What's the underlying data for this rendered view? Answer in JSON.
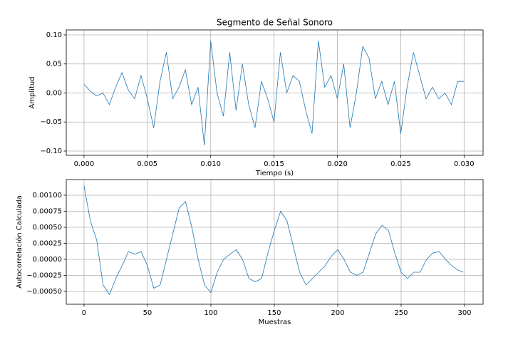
{
  "chart_data": [
    {
      "type": "line",
      "title": "Segmento de Señal Sonoro",
      "x_label": "Tiempo (s)",
      "y_label": "Amplitud",
      "x": [
        0,
        0.0005,
        0.001,
        0.0015,
        0.002,
        0.0025,
        0.003,
        0.0035,
        0.004,
        0.0045,
        0.005,
        0.0055,
        0.006,
        0.0065,
        0.007,
        0.0075,
        0.008,
        0.0085,
        0.009,
        0.0095,
        0.01,
        0.0105,
        0.011,
        0.0115,
        0.012,
        0.0125,
        0.013,
        0.0135,
        0.014,
        0.0145,
        0.015,
        0.0155,
        0.016,
        0.0165,
        0.017,
        0.0175,
        0.018,
        0.0185,
        0.019,
        0.0195,
        0.02,
        0.0205,
        0.021,
        0.0215,
        0.022,
        0.0225,
        0.023,
        0.0235,
        0.024,
        0.0245,
        0.025,
        0.0255,
        0.026,
        0.0265,
        0.027,
        0.0275,
        0.028,
        0.0285,
        0.029,
        0.0295,
        0.03
      ],
      "series": [
        {
          "color": "#1f77b4",
          "values": [
            0.015,
            0.003,
            -0.005,
            0.0,
            -0.02,
            0.01,
            0.035,
            0.005,
            -0.01,
            0.03,
            -0.01,
            -0.06,
            0.02,
            0.07,
            -0.01,
            0.01,
            0.04,
            -0.02,
            0.01,
            -0.09,
            0.09,
            0.0,
            -0.04,
            0.07,
            -0.03,
            0.05,
            -0.02,
            -0.06,
            0.02,
            -0.01,
            -0.05,
            0.07,
            0.0,
            0.03,
            0.02,
            -0.03,
            -0.07,
            0.09,
            0.01,
            0.03,
            -0.01,
            0.05,
            -0.06,
            0.0,
            0.08,
            0.06,
            -0.01,
            0.02,
            -0.02,
            0.02,
            -0.07,
            0.01,
            0.07,
            0.03,
            -0.01,
            0.01,
            -0.01,
            0.0,
            -0.02,
            0.02,
            0.02
          ]
        }
      ],
      "xlim": [
        -0.0014,
        0.0315
      ],
      "ylim": [
        -0.1074,
        0.1086
      ],
      "xticks": [
        {
          "value": 0,
          "label": "0.000"
        },
        {
          "value": 0.005,
          "label": "0.005"
        },
        {
          "value": 0.01,
          "label": "0.010"
        },
        {
          "value": 0.015,
          "label": "0.015"
        },
        {
          "value": 0.02,
          "label": "0.020"
        },
        {
          "value": 0.025,
          "label": "0.025"
        },
        {
          "value": 0.03,
          "label": "0.030"
        }
      ],
      "yticks": [
        {
          "value": -0.1,
          "label": "−0.10"
        },
        {
          "value": -0.05,
          "label": "−0.05"
        },
        {
          "value": 0,
          "label": "0.00"
        },
        {
          "value": 0.05,
          "label": "0.05"
        },
        {
          "value": 0.1,
          "label": "0.10"
        }
      ],
      "grid": true
    },
    {
      "type": "line",
      "x_label": "Muestras",
      "y_label": "Autocorrelación Calculada",
      "x": [
        0,
        5,
        10,
        15,
        20,
        25,
        30,
        35,
        40,
        45,
        50,
        55,
        60,
        65,
        70,
        75,
        80,
        85,
        90,
        95,
        100,
        105,
        110,
        115,
        120,
        125,
        130,
        135,
        140,
        145,
        150,
        155,
        160,
        165,
        170,
        175,
        180,
        185,
        190,
        195,
        200,
        205,
        210,
        215,
        220,
        225,
        230,
        235,
        240,
        245,
        250,
        255,
        260,
        265,
        270,
        275,
        280,
        285,
        290,
        295,
        299
      ],
      "series": [
        {
          "color": "#1f77b4",
          "values": [
            0.00115,
            0.0006,
            0.0003,
            -0.0004,
            -0.00055,
            -0.0003,
            -0.0001,
            0.00012,
            8e-05,
            0.00012,
            -0.0001,
            -0.00045,
            -0.0004,
            0.0,
            0.0004,
            0.0008,
            0.0009,
            0.0005,
            0.0,
            -0.0004,
            -0.00052,
            -0.0002,
            0.0,
            8e-05,
            0.00015,
            0.0,
            -0.0003,
            -0.00035,
            -0.0003,
            0.0001,
            0.00045,
            0.00075,
            0.0006,
            0.0002,
            -0.0002,
            -0.0004,
            -0.0003,
            -0.0002,
            -0.0001,
            5e-05,
            0.00015,
            0.0,
            -0.0002,
            -0.00025,
            -0.0002,
            0.0001,
            0.0004,
            0.00053,
            0.00045,
            0.0001,
            -0.0002,
            -0.0003,
            -0.0002,
            -0.0002,
            0.0,
            0.0001,
            0.00012,
            0.0,
            -0.0001,
            -0.00017,
            -0.0002
          ]
        }
      ],
      "xlim": [
        -14,
        314.6
      ],
      "ylim": [
        -0.0007,
        0.001244
      ],
      "xticks": [
        0,
        50,
        100,
        150,
        200,
        250,
        300
      ],
      "yticks": [
        {
          "value": -0.0005,
          "label": "−0.00050"
        },
        {
          "value": -0.00025,
          "label": "−0.00025"
        },
        {
          "value": 0,
          "label": "0.00000"
        },
        {
          "value": 0.00025,
          "label": "0.00025"
        },
        {
          "value": 0.0005,
          "label": "0.00050"
        },
        {
          "value": 0.00075,
          "label": "0.00075"
        },
        {
          "value": 0.001,
          "label": "0.00100"
        }
      ],
      "grid": true
    }
  ]
}
